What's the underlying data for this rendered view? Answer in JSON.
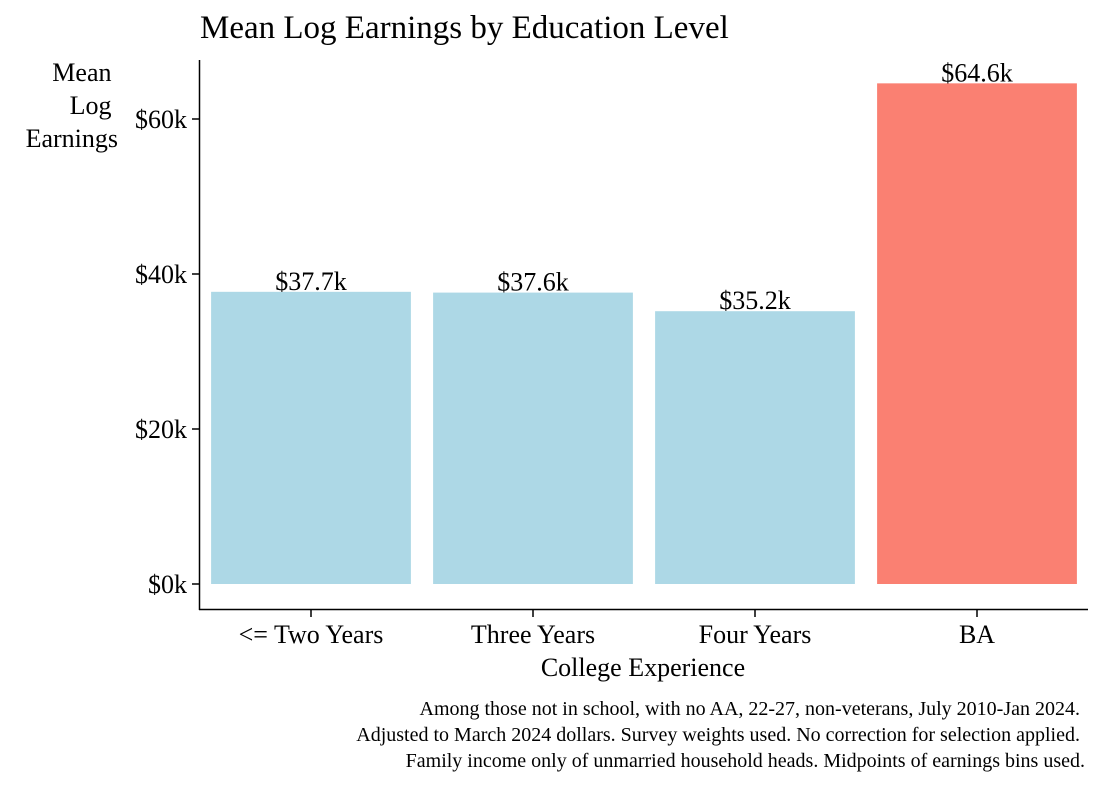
{
  "chart_data": {
    "type": "bar",
    "title": "Mean Log Earnings by Education Level",
    "xlabel": "College Experience",
    "ylabel_lines": [
      "Mean",
      "Log",
      "Earnings"
    ],
    "categories": [
      "<= Two Years",
      "Three Years",
      "Four Years",
      "BA"
    ],
    "values": [
      37.7,
      37.6,
      35.2,
      64.6
    ],
    "value_unit": "thousand dollars",
    "data_labels": [
      "$37.7k",
      "$37.6k",
      "$35.2k",
      "$64.6k"
    ],
    "bar_colors": [
      "#add8e6",
      "#add8e6",
      "#add8e6",
      "#fa8072"
    ],
    "y_ticks": [
      0,
      20,
      40,
      60
    ],
    "y_tick_labels": [
      "$0k",
      "$20k",
      "$40k",
      "$60k"
    ],
    "ylim": [
      0,
      67.7
    ],
    "grid": false,
    "legend": "none",
    "caption_lines": [
      "Among those not in school, with no AA, 22-27, non-veterans, July 2010-Jan 2024.",
      "Adjusted to March 2024 dollars. Survey weights used. No correction for selection applied.",
      "Family income only of unmarried household heads. Midpoints of earnings bins used."
    ]
  }
}
